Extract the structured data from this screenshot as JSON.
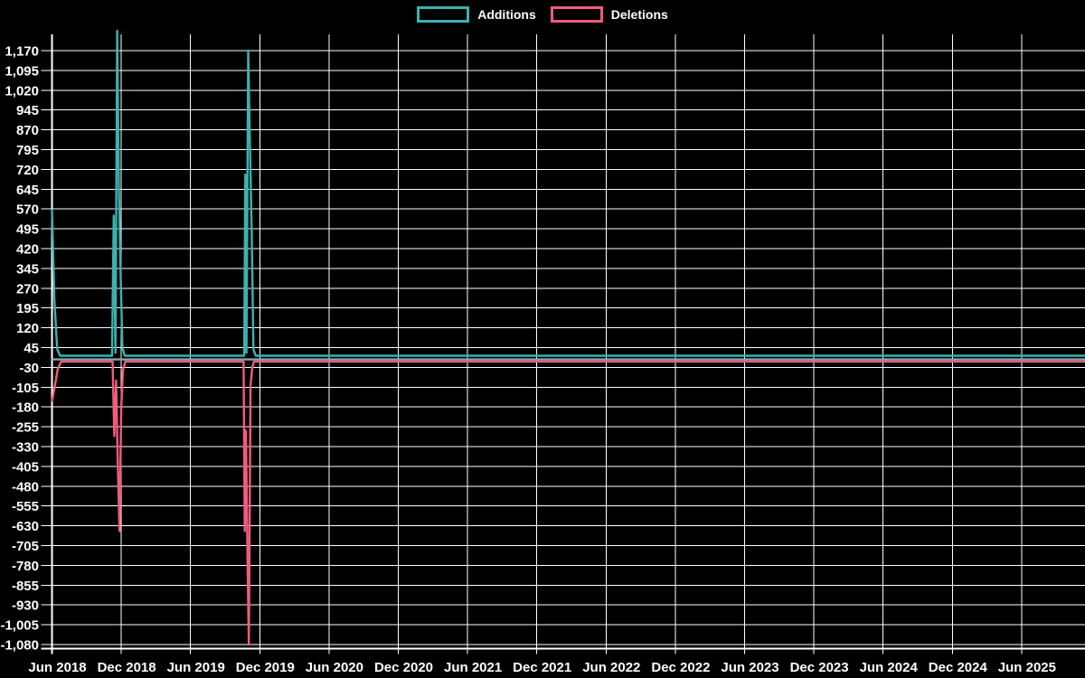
{
  "legend": {
    "items": [
      {
        "id": "additions",
        "label": "Additions",
        "color": "#3db1ae"
      },
      {
        "id": "deletions",
        "label": "Deletions",
        "color": "#f05c7f"
      }
    ]
  },
  "chart_data": {
    "type": "line",
    "title": "",
    "xlabel": "",
    "ylabel": "",
    "x_unit": "months_since_jun_2018",
    "x_tick_step_months": 6,
    "x_tick_labels": [
      "Jun 2018",
      "Dec 2018",
      "Jun 2019",
      "Dec 2019",
      "Jun 2020",
      "Dec 2020",
      "Jun 2021",
      "Dec 2021",
      "Jun 2022",
      "Dec 2022",
      "Jun 2023",
      "Dec 2023",
      "Jun 2024",
      "Dec 2024",
      "Jun 2025"
    ],
    "y_ticks": [
      1170,
      1095,
      1020,
      945,
      870,
      795,
      720,
      645,
      570,
      495,
      420,
      345,
      270,
      195,
      120,
      45,
      -30,
      -105,
      -180,
      -255,
      -330,
      -405,
      -480,
      -555,
      -630,
      -705,
      -780,
      -855,
      -930,
      -1005,
      -1080
    ],
    "ylim": [
      -1080,
      1245
    ],
    "grid": true,
    "grid_color": "#ffffff",
    "axis_color": "#ffffff",
    "tick_label_color": "#ffffff",
    "background_color": "#000000",
    "legend_position": "top-center",
    "baseline": {
      "value": 0,
      "color": "#85a7b5"
    },
    "series": [
      {
        "name": "Additions",
        "color": "#3db1ae",
        "points": [
          [
            0,
            570
          ],
          [
            0.2,
            230
          ],
          [
            0.45,
            40
          ],
          [
            0.7,
            14
          ],
          [
            5.2,
            14
          ],
          [
            5.35,
            545
          ],
          [
            5.5,
            25
          ],
          [
            5.65,
            1245
          ],
          [
            5.8,
            640
          ],
          [
            5.95,
            310
          ],
          [
            6.1,
            45
          ],
          [
            6.3,
            14
          ],
          [
            16.65,
            14
          ],
          [
            16.75,
            700
          ],
          [
            16.85,
            25
          ],
          [
            17.0,
            1170
          ],
          [
            17.15,
            820
          ],
          [
            17.3,
            480
          ],
          [
            17.45,
            38
          ],
          [
            17.65,
            14
          ],
          [
            89.5,
            14
          ]
        ]
      },
      {
        "name": "Deletions",
        "color": "#f05c7f",
        "points": [
          [
            0,
            -160
          ],
          [
            0.25,
            -100
          ],
          [
            0.5,
            -35
          ],
          [
            0.8,
            -8
          ],
          [
            5.25,
            -8
          ],
          [
            5.4,
            -290
          ],
          [
            5.55,
            -80
          ],
          [
            5.7,
            -400
          ],
          [
            5.85,
            -650
          ],
          [
            6.0,
            -180
          ],
          [
            6.15,
            -40
          ],
          [
            6.35,
            -8
          ],
          [
            16.6,
            -8
          ],
          [
            16.7,
            -650
          ],
          [
            16.8,
            -270
          ],
          [
            16.95,
            -790
          ],
          [
            17.05,
            -1080
          ],
          [
            17.2,
            -100
          ],
          [
            17.35,
            -30
          ],
          [
            17.5,
            -8
          ],
          [
            89.5,
            -8
          ]
        ]
      }
    ]
  }
}
